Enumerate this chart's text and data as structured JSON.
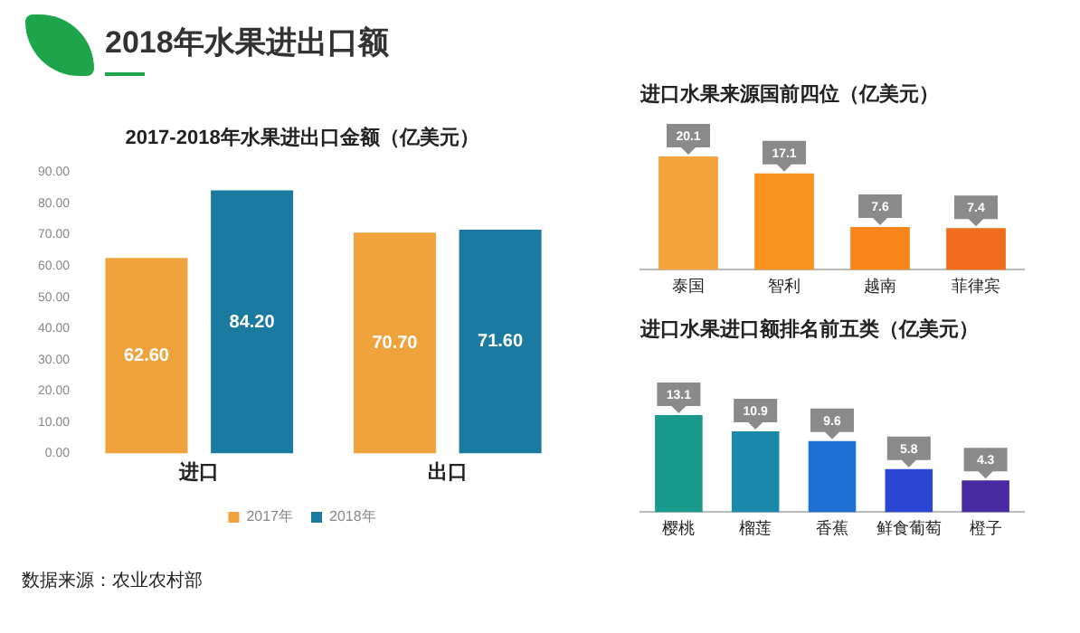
{
  "chart_data": [
    {
      "type": "bar",
      "title": "2018年水果进出口额",
      "subtitle": "2017-2018年水果进出口金额（亿美元）",
      "categories": [
        "进口",
        "出口"
      ],
      "series": [
        {
          "name": "2017年",
          "color": "#f0a23c",
          "values": [
            62.6,
            70.7
          ],
          "value_labels": [
            "62.60",
            "70.70"
          ]
        },
        {
          "name": "2018年",
          "color": "#1a7aa0",
          "values": [
            84.2,
            71.6
          ],
          "value_labels": [
            "84.20",
            "71.60"
          ]
        }
      ],
      "ylim": [
        0,
        90
      ],
      "yticks": [
        {
          "value": 0,
          "label": "0.00"
        },
        {
          "value": 10,
          "label": "10.00"
        },
        {
          "value": 20,
          "label": "20.00"
        },
        {
          "value": 30,
          "label": "30.00"
        },
        {
          "value": 40,
          "label": "40.00"
        },
        {
          "value": 50,
          "label": "50.00"
        },
        {
          "value": 60,
          "label": "60.00"
        },
        {
          "value": 70,
          "label": "70.00"
        },
        {
          "value": 80,
          "label": "80.00"
        },
        {
          "value": 90,
          "label": "90.00"
        }
      ],
      "legend": "bottom",
      "annotations": [
        "数据来源：农业农村部"
      ]
    },
    {
      "type": "bar",
      "title": "进口水果来源国前四位（亿美元）",
      "categories": [
        "泰国",
        "智利",
        "越南",
        "菲律宾"
      ],
      "values": [
        20.1,
        17.1,
        7.6,
        7.4
      ],
      "colors": [
        "#f5a33c",
        "#f7931e",
        "#f7861b",
        "#f26c1e"
      ],
      "data_labels": true,
      "tick_labels": "x"
    },
    {
      "type": "bar",
      "title": "进口水果进口额排名前五类（亿美元）",
      "categories": [
        "樱桃",
        "榴莲",
        "香蕉",
        "鲜食葡萄",
        "橙子"
      ],
      "values": [
        13.1,
        10.9,
        9.6,
        5.8,
        4.3
      ],
      "colors": [
        "#1a9a8c",
        "#1a88aa",
        "#1f6fd2",
        "#2a46d2",
        "#4a2aa2"
      ],
      "data_labels": true,
      "tick_labels": "x"
    }
  ]
}
